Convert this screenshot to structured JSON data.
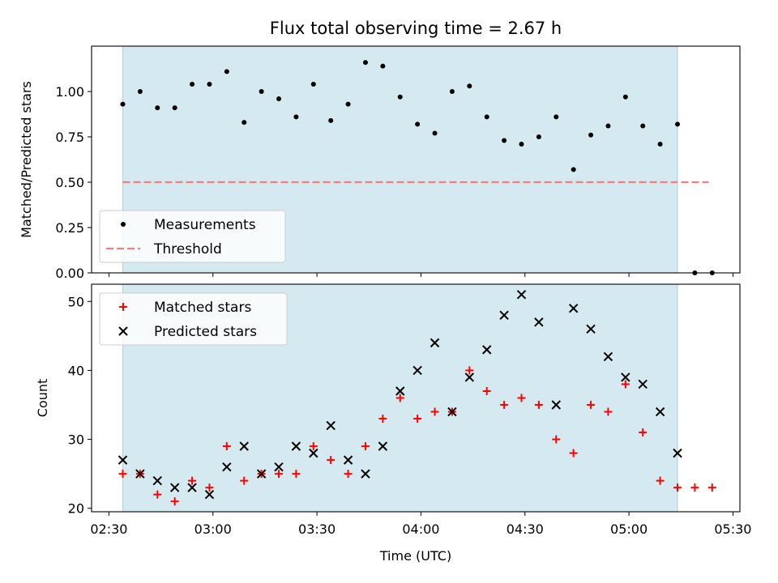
{
  "figure": {
    "title": "Flux total observing time = 2.67 h",
    "shaded_region_color": "#d4eaf0",
    "shaded_region_edge": "#a9d2dc"
  },
  "chart_data": [
    {
      "type": "scatter",
      "panel": "top",
      "ylabel": "Matched/Predicted stars",
      "xlabel": "",
      "xlim": [
        "02:25",
        "05:32"
      ],
      "ylim": [
        0,
        1.25
      ],
      "yticks": [
        0.0,
        0.25,
        0.5,
        0.75,
        1.0
      ],
      "ytick_labels": [
        "0.00",
        "0.25",
        "0.50",
        "0.75",
        "1.00"
      ],
      "shaded_x_range": [
        "02:34",
        "05:14"
      ],
      "legend_position": "lower-left",
      "legend": [
        {
          "label": "Measurements",
          "marker": "dot",
          "color": "#000000"
        },
        {
          "label": "Threshold",
          "marker": "dashed-line",
          "color": "#f08080"
        }
      ],
      "threshold": {
        "y": 0.5,
        "x_range": [
          "02:34",
          "05:23"
        ],
        "color": "#f08080"
      },
      "series": [
        {
          "name": "Measurements",
          "color": "#000000",
          "x": [
            "02:34",
            "02:39",
            "02:44",
            "02:49",
            "02:54",
            "02:59",
            "03:04",
            "03:09",
            "03:14",
            "03:19",
            "03:24",
            "03:29",
            "03:34",
            "03:39",
            "03:44",
            "03:49",
            "03:54",
            "03:59",
            "04:04",
            "04:09",
            "04:14",
            "04:19",
            "04:24",
            "04:29",
            "04:34",
            "04:39",
            "04:44",
            "04:49",
            "04:54",
            "04:59",
            "05:04",
            "05:09",
            "05:14",
            "05:19",
            "05:24"
          ],
          "y": [
            0.93,
            1.0,
            0.91,
            0.91,
            1.04,
            1.04,
            1.11,
            0.83,
            1.0,
            0.96,
            0.86,
            1.04,
            0.84,
            0.93,
            1.16,
            1.14,
            0.97,
            0.82,
            0.77,
            1.0,
            1.03,
            0.86,
            0.73,
            0.71,
            0.75,
            0.86,
            0.57,
            0.76,
            0.81,
            0.97,
            0.81,
            0.71,
            0.82,
            0.0,
            0.0
          ]
        }
      ]
    },
    {
      "type": "scatter",
      "panel": "bottom",
      "ylabel": "Count",
      "xlabel": "Time (UTC)",
      "xlim": [
        "02:25",
        "05:32"
      ],
      "ylim": [
        19.5,
        52.5
      ],
      "yticks": [
        20,
        30,
        40,
        50
      ],
      "ytick_labels": [
        "20",
        "30",
        "40",
        "50"
      ],
      "xticks": [
        "02:30",
        "03:00",
        "03:30",
        "04:00",
        "04:30",
        "05:00",
        "05:30"
      ],
      "xtick_labels": [
        "02:30",
        "03:00",
        "03:30",
        "04:00",
        "04:30",
        "05:00",
        "05:30"
      ],
      "shaded_x_range": [
        "02:34",
        "05:14"
      ],
      "legend_position": "top-left",
      "legend": [
        {
          "label": "Matched stars",
          "marker": "plus",
          "color": "#ff0000"
        },
        {
          "label": "Predicted stars",
          "marker": "x",
          "color": "#000000"
        }
      ],
      "series": [
        {
          "name": "Matched stars",
          "marker": "plus",
          "color": "#ff0000",
          "x": [
            "02:34",
            "02:39",
            "02:44",
            "02:49",
            "02:54",
            "02:59",
            "03:04",
            "03:09",
            "03:14",
            "03:19",
            "03:24",
            "03:29",
            "03:34",
            "03:39",
            "03:44",
            "03:49",
            "03:54",
            "03:59",
            "04:04",
            "04:09",
            "04:14",
            "04:19",
            "04:24",
            "04:29",
            "04:34",
            "04:39",
            "04:44",
            "04:49",
            "04:54",
            "04:59",
            "05:04",
            "05:09",
            "05:14",
            "05:19",
            "05:24"
          ],
          "y": [
            25,
            25,
            22,
            21,
            24,
            23,
            29,
            24,
            25,
            25,
            25,
            29,
            27,
            25,
            29,
            33,
            36,
            33,
            34,
            34,
            40,
            37,
            35,
            36,
            35,
            30,
            28,
            35,
            34,
            38,
            31,
            24,
            23,
            23,
            23
          ]
        },
        {
          "name": "Predicted stars",
          "marker": "x",
          "color": "#000000",
          "x": [
            "02:34",
            "02:39",
            "02:44",
            "02:49",
            "02:54",
            "02:59",
            "03:04",
            "03:09",
            "03:14",
            "03:19",
            "03:24",
            "03:29",
            "03:34",
            "03:39",
            "03:44",
            "03:49",
            "03:54",
            "03:59",
            "04:04",
            "04:09",
            "04:14",
            "04:19",
            "04:24",
            "04:29",
            "04:34",
            "04:39",
            "04:44",
            "04:49",
            "04:54",
            "04:59",
            "05:04",
            "05:09",
            "05:14"
          ],
          "y": [
            27,
            25,
            24,
            23,
            23,
            22,
            26,
            29,
            25,
            26,
            29,
            28,
            32,
            27,
            25,
            29,
            37,
            40,
            44,
            34,
            39,
            43,
            48,
            51,
            47,
            35,
            49,
            46,
            42,
            39,
            38,
            34,
            28
          ]
        }
      ]
    }
  ]
}
